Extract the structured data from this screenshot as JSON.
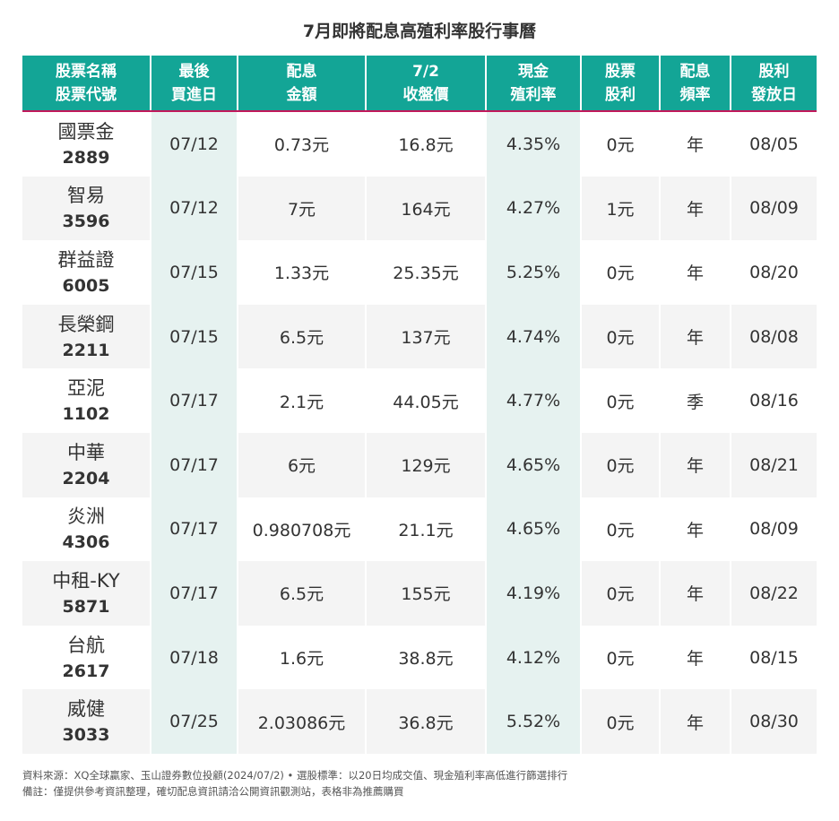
{
  "title": "7月即將配息高殖利率股行事曆",
  "headers": [
    [
      "股票名稱",
      "股票代號"
    ],
    [
      "最後",
      "買進日"
    ],
    [
      "配息",
      "金額"
    ],
    [
      "7/2",
      "收盤價"
    ],
    [
      "現金",
      "殖利率"
    ],
    [
      "股票",
      "股利"
    ],
    [
      "配息",
      "頻率"
    ],
    [
      "股利",
      "發放日"
    ]
  ],
  "rows": [
    {
      "name": "國票金",
      "code": "2889",
      "last_buy": "07/12",
      "dividend": "0.73元",
      "close": "16.8元",
      "yield": "4.35%",
      "stock_div": "0元",
      "freq": "年",
      "pay_date": "08/05"
    },
    {
      "name": "智易",
      "code": "3596",
      "last_buy": "07/12",
      "dividend": "7元",
      "close": "164元",
      "yield": "4.27%",
      "stock_div": "1元",
      "freq": "年",
      "pay_date": "08/09"
    },
    {
      "name": "群益證",
      "code": "6005",
      "last_buy": "07/15",
      "dividend": "1.33元",
      "close": "25.35元",
      "yield": "5.25%",
      "stock_div": "0元",
      "freq": "年",
      "pay_date": "08/20"
    },
    {
      "name": "長榮鋼",
      "code": "2211",
      "last_buy": "07/15",
      "dividend": "6.5元",
      "close": "137元",
      "yield": "4.74%",
      "stock_div": "0元",
      "freq": "年",
      "pay_date": "08/08"
    },
    {
      "name": "亞泥",
      "code": "1102",
      "last_buy": "07/17",
      "dividend": "2.1元",
      "close": "44.05元",
      "yield": "4.77%",
      "stock_div": "0元",
      "freq": "季",
      "pay_date": "08/16"
    },
    {
      "name": "中華",
      "code": "2204",
      "last_buy": "07/17",
      "dividend": "6元",
      "close": "129元",
      "yield": "4.65%",
      "stock_div": "0元",
      "freq": "年",
      "pay_date": "08/21"
    },
    {
      "name": "炎洲",
      "code": "4306",
      "last_buy": "07/17",
      "dividend": "0.980708元",
      "close": "21.1元",
      "yield": "4.65%",
      "stock_div": "0元",
      "freq": "年",
      "pay_date": "08/09"
    },
    {
      "name": "中租-KY",
      "code": "5871",
      "last_buy": "07/17",
      "dividend": "6.5元",
      "close": "155元",
      "yield": "4.19%",
      "stock_div": "0元",
      "freq": "年",
      "pay_date": "08/22"
    },
    {
      "name": "台航",
      "code": "2617",
      "last_buy": "07/18",
      "dividend": "1.6元",
      "close": "38.8元",
      "yield": "4.12%",
      "stock_div": "0元",
      "freq": "年",
      "pay_date": "08/15"
    },
    {
      "name": "威健",
      "code": "3033",
      "last_buy": "07/25",
      "dividend": "2.03086元",
      "close": "36.8元",
      "yield": "5.52%",
      "stock_div": "0元",
      "freq": "年",
      "pay_date": "08/30"
    }
  ],
  "notes": {
    "source": "資料來源：XQ全球贏家、玉山證券數位投顧(2024/07/2) • 選股標準：以20日均成交值、現金殖利率高低進行篩選排行",
    "remark": "備註：僅提供參考資訊整理，確切配息資訊請洽公開資訊觀測站，表格非為推薦購買"
  }
}
